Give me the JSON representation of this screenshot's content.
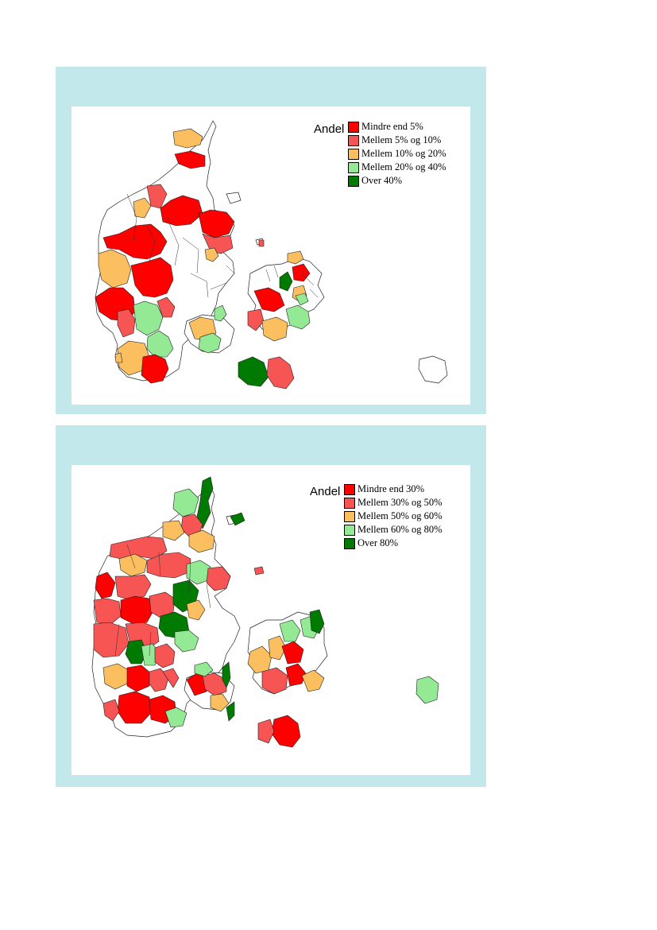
{
  "maps": [
    {
      "legend": {
        "title": "Andel",
        "items": [
          {
            "label": "Mindre end 5%",
            "color": "#ff0000"
          },
          {
            "label": "Mellem 5% og 10%",
            "color": "#f75454"
          },
          {
            "label": "Mellem 10% og 20%",
            "color": "#fbbf5f"
          },
          {
            "label": "Mellem 20% og 40%",
            "color": "#94ea94"
          },
          {
            "label": "Over 40%",
            "color": "#007a00"
          }
        ]
      }
    },
    {
      "legend": {
        "title": "Andel",
        "items": [
          {
            "label": "Mindre end 30%",
            "color": "#ff0000"
          },
          {
            "label": "Mellem 30% og 50%",
            "color": "#f75454"
          },
          {
            "label": "Mellem 50% og 60%",
            "color": "#fbbf5f"
          },
          {
            "label": "Mellem 60% og 80%",
            "color": "#94ea94"
          },
          {
            "label": "Over 80%",
            "color": "#007a00"
          }
        ]
      }
    }
  ]
}
